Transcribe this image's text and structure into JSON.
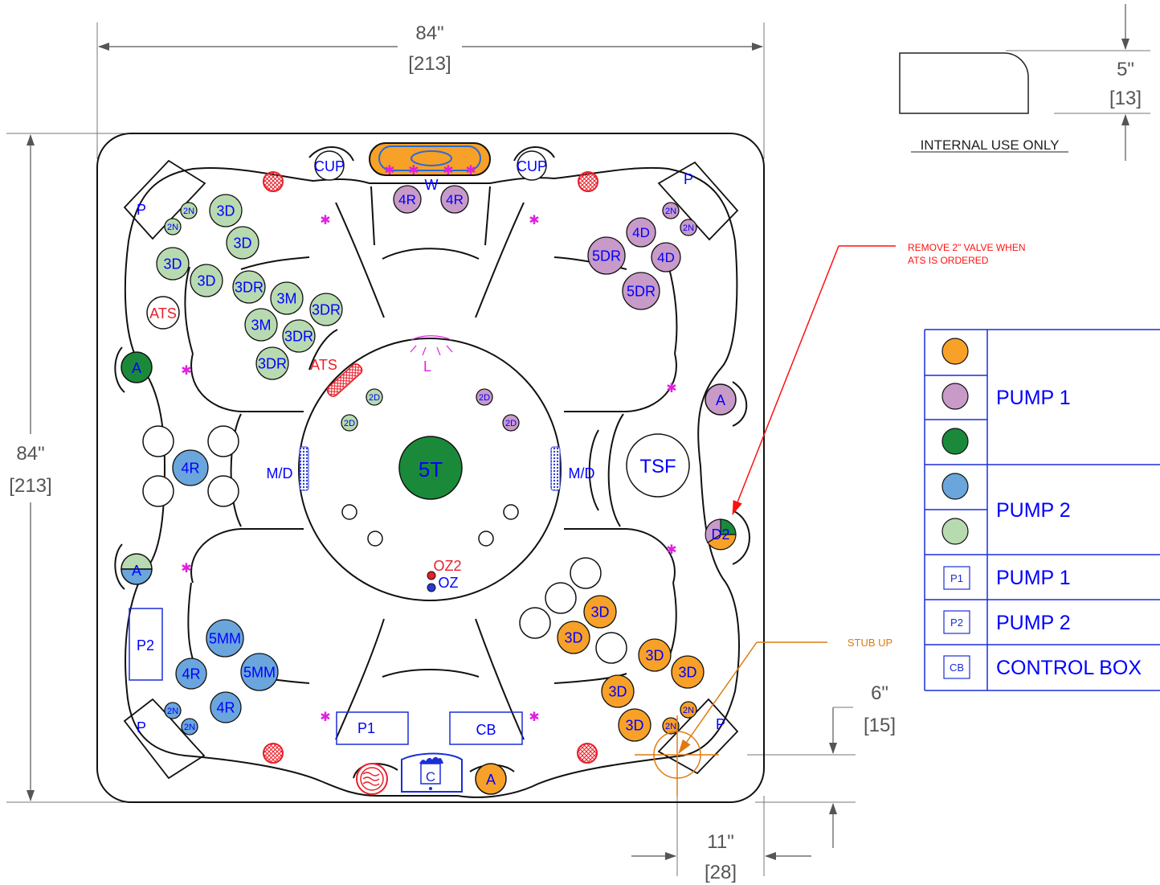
{
  "colors": {
    "orange": "#f7a128",
    "purple": "#c89ac8",
    "green_dark": "#1a8a3a",
    "blue": "#6aa5dc",
    "green_light": "#b8dab0",
    "label_blue": "#0000ff",
    "red": "#e8202a",
    "magenta": "#e020e0",
    "dim_gray": "#555555"
  },
  "dimensions": {
    "top_width_in": "84\"",
    "top_width_cm": "[213]",
    "left_height_in": "84\"",
    "left_height_cm": "[213]",
    "corner_in": "5\"",
    "corner_cm": "[13]",
    "stub_v_in": "6\"",
    "stub_v_cm": "[15]",
    "stub_h_in": "11\"",
    "stub_h_cm": "[28]"
  },
  "notes": {
    "internal": "INTERNAL USE ONLY",
    "remove_line1": "REMOVE 2\" VALVE WHEN",
    "remove_line2": "ATS IS ORDERED",
    "stub_up": "STUB UP"
  },
  "labels": {
    "cup": "CUP",
    "w": "W",
    "l": "L",
    "p": "P",
    "ats": "ATS",
    "a": "A",
    "md": "M/D",
    "t5": "5T",
    "tsf": "TSF",
    "d2": "D2",
    "oz2": "OZ2",
    "oz": "OZ",
    "p1": "P1",
    "p2": "P2",
    "cb": "CB",
    "c": "C",
    "j3d": "3D",
    "j3dr": "3DR",
    "j3m": "3M",
    "j2n": "2N",
    "j2d": "2D",
    "j4r": "4R",
    "j4d": "4D",
    "j5dr": "5DR",
    "j5mm": "5MM"
  },
  "legend": {
    "pump1": "PUMP 1",
    "pump2": "PUMP 2",
    "p1_pump": "PUMP 1",
    "p2_pump": "PUMP 2",
    "control_box": "CONTROL BOX",
    "box_p1": "P1",
    "box_p2": "P2",
    "box_cb": "CB"
  }
}
